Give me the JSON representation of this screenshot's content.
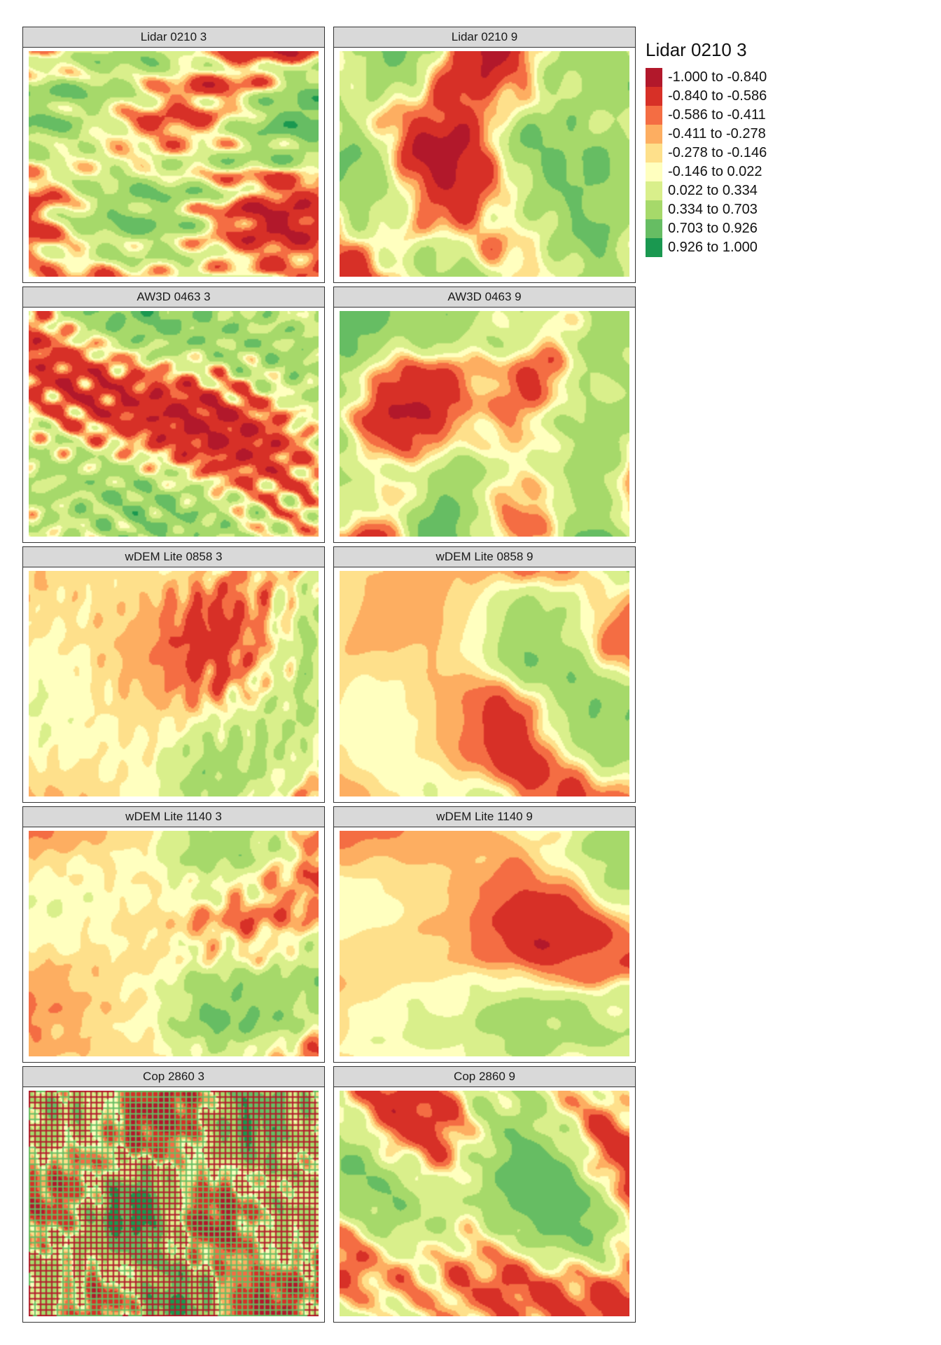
{
  "panels": [
    {
      "title": "Lidar 0210 3",
      "seed": 11,
      "style": "lidar3"
    },
    {
      "title": "Lidar 0210 9",
      "seed": 12,
      "style": "lidar9"
    },
    {
      "title": "AW3D 0463 3",
      "seed": 21,
      "style": "aw3"
    },
    {
      "title": "AW3D 0463 9",
      "seed": 22,
      "style": "aw9"
    },
    {
      "title": "wDEM Lite 0858 3",
      "seed": 31,
      "style": "wdem3"
    },
    {
      "title": "wDEM Lite 0858 9",
      "seed": 32,
      "style": "wdem9"
    },
    {
      "title": "wDEM Lite 1140 3",
      "seed": 41,
      "style": "wdem3"
    },
    {
      "title": "wDEM Lite 1140 9",
      "seed": 42,
      "style": "wdem9"
    },
    {
      "title": "Cop 2860 3",
      "seed": 51,
      "style": "cop3"
    },
    {
      "title": "Cop 2860 9",
      "seed": 52,
      "style": "cop9"
    }
  ],
  "legend": {
    "title": "Lidar 0210 3",
    "classes": [
      {
        "label": "-1.000 to -0.840",
        "color": "#b2182b"
      },
      {
        "label": "-0.840 to -0.586",
        "color": "#d73027"
      },
      {
        "label": "-0.586 to -0.411",
        "color": "#f46d43"
      },
      {
        "label": "-0.411 to -0.278",
        "color": "#fdae61"
      },
      {
        "label": "-0.278 to -0.146",
        "color": "#fee08b"
      },
      {
        "label": "-0.146 to 0.022",
        "color": "#ffffbf"
      },
      {
        "label": "0.022 to 0.334",
        "color": "#d9ef8b"
      },
      {
        "label": "0.334 to 0.703",
        "color": "#a6d96a"
      },
      {
        "label": "0.703 to 0.926",
        "color": "#66bd63"
      },
      {
        "label": "0.926 to 1.000",
        "color": "#1a9850"
      }
    ]
  }
}
